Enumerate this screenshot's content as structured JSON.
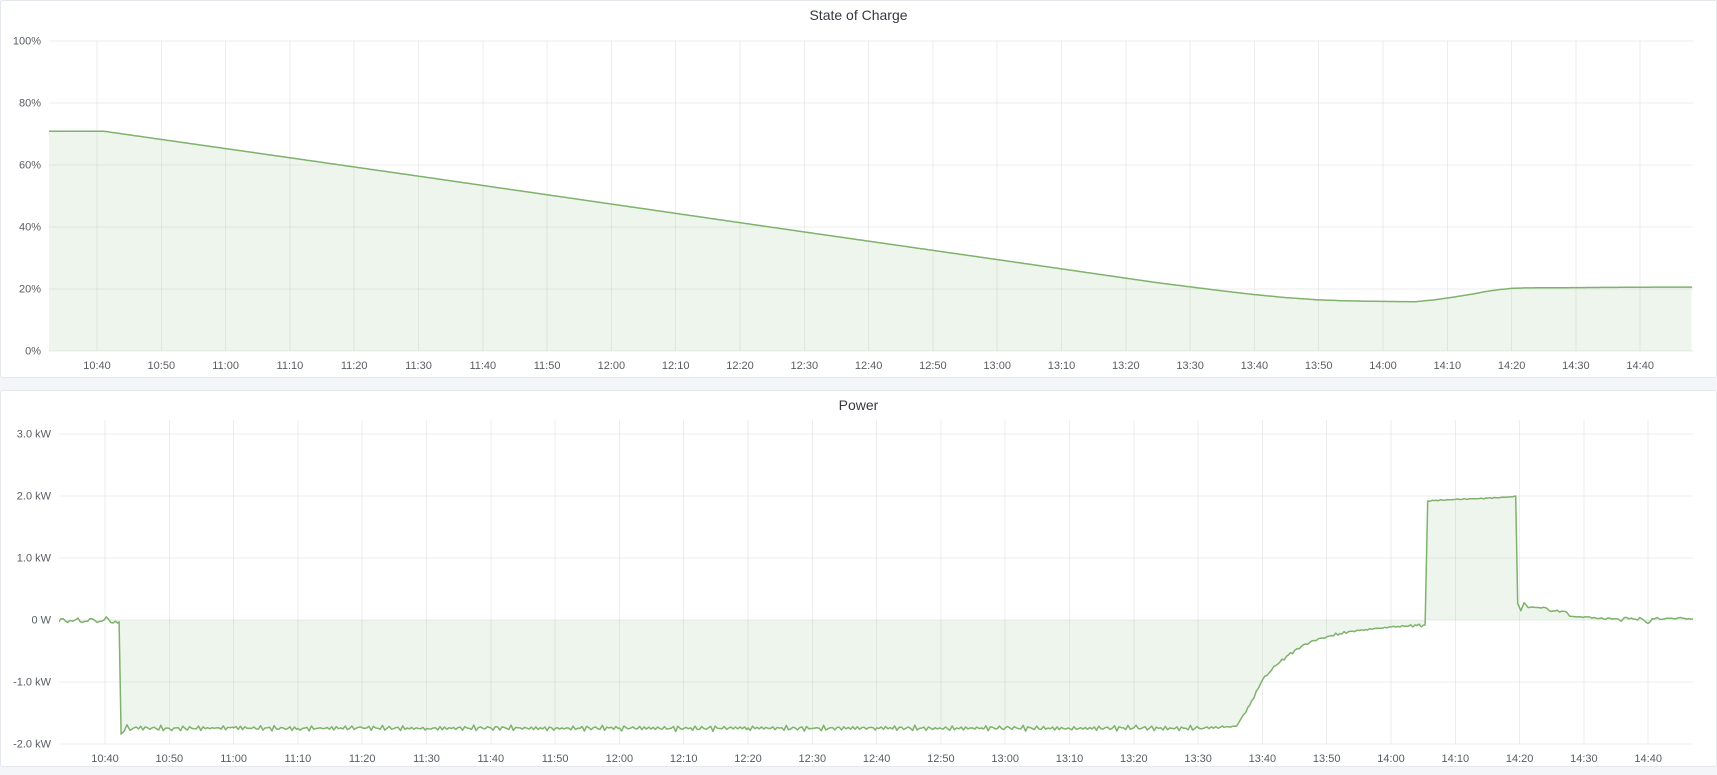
{
  "page": {
    "background_color": "#f4f5f9",
    "panel_background": "#ffffff"
  },
  "chart_data": [
    {
      "type": "area",
      "title": "State of Charge",
      "xlabel": "",
      "ylabel": "",
      "unit": "percent",
      "ylim": [
        0,
        100.3
      ],
      "grid": true,
      "legend": "none",
      "x_axis_minutes_after_10_00": true,
      "xlim": [
        32.5,
        288.5
      ],
      "x_ticks": [
        {
          "t": 40,
          "label": "10:40"
        },
        {
          "t": 50,
          "label": "10:50"
        },
        {
          "t": 60,
          "label": "11:00"
        },
        {
          "t": 70,
          "label": "11:10"
        },
        {
          "t": 80,
          "label": "11:20"
        },
        {
          "t": 90,
          "label": "11:30"
        },
        {
          "t": 100,
          "label": "11:40"
        },
        {
          "t": 110,
          "label": "11:50"
        },
        {
          "t": 120,
          "label": "12:00"
        },
        {
          "t": 130,
          "label": "12:10"
        },
        {
          "t": 140,
          "label": "12:20"
        },
        {
          "t": 150,
          "label": "12:30"
        },
        {
          "t": 160,
          "label": "12:40"
        },
        {
          "t": 170,
          "label": "12:50"
        },
        {
          "t": 180,
          "label": "13:00"
        },
        {
          "t": 190,
          "label": "13:10"
        },
        {
          "t": 200,
          "label": "13:20"
        },
        {
          "t": 210,
          "label": "13:30"
        },
        {
          "t": 220,
          "label": "13:40"
        },
        {
          "t": 230,
          "label": "13:50"
        },
        {
          "t": 240,
          "label": "14:00"
        },
        {
          "t": 250,
          "label": "14:10"
        },
        {
          "t": 260,
          "label": "14:20"
        },
        {
          "t": 270,
          "label": "14:30"
        },
        {
          "t": 280,
          "label": "14:40"
        }
      ],
      "y_ticks": [
        {
          "v": 0,
          "label": "0%"
        },
        {
          "v": 20,
          "label": "20%"
        },
        {
          "v": 40,
          "label": "40%"
        },
        {
          "v": 60,
          "label": "60%"
        },
        {
          "v": 80,
          "label": "80%"
        },
        {
          "v": 100,
          "label": "100%"
        }
      ],
      "baseline": 0,
      "series": [
        {
          "name": "State of Charge",
          "color": "#7eb26d",
          "fill_opacity": 0.13,
          "points": [
            [
              32.5,
              70.9
            ],
            [
              41,
              70.9
            ],
            [
              60,
              65.3
            ],
            [
              90,
              56.4
            ],
            [
              120,
              47.4
            ],
            [
              150,
              38.4
            ],
            [
              180,
              29.5
            ],
            [
              195,
              25.0
            ],
            [
              200,
              23.5
            ],
            [
              205,
              22.0
            ],
            [
              210,
              20.7
            ],
            [
              215,
              19.4
            ],
            [
              220,
              18.2
            ],
            [
              225,
              17.2
            ],
            [
              230,
              16.5
            ],
            [
              234,
              16.2
            ],
            [
              238,
              16.05
            ],
            [
              242,
              15.95
            ],
            [
              245,
              15.9
            ],
            [
              248,
              16.5
            ],
            [
              251,
              17.4
            ],
            [
              254,
              18.4
            ],
            [
              256,
              19.2
            ],
            [
              258,
              19.8
            ],
            [
              260,
              20.2
            ],
            [
              262,
              20.35
            ],
            [
              266,
              20.4
            ],
            [
              270,
              20.45
            ],
            [
              274,
              20.5
            ],
            [
              278,
              20.55
            ],
            [
              282,
              20.6
            ],
            [
              288,
              20.6
            ]
          ],
          "noise_segments": []
        }
      ]
    },
    {
      "type": "area",
      "title": "Power",
      "xlabel": "",
      "ylabel": "",
      "unit": "watt",
      "ylim": [
        -2.0,
        3.23
      ],
      "grid": true,
      "legend": "none",
      "x_axis_minutes_after_10_00": true,
      "xlim": [
        32.8,
        287
      ],
      "x_ticks": [
        {
          "t": 40,
          "label": "10:40"
        },
        {
          "t": 50,
          "label": "10:50"
        },
        {
          "t": 60,
          "label": "11:00"
        },
        {
          "t": 70,
          "label": "11:10"
        },
        {
          "t": 80,
          "label": "11:20"
        },
        {
          "t": 90,
          "label": "11:30"
        },
        {
          "t": 100,
          "label": "11:40"
        },
        {
          "t": 110,
          "label": "11:50"
        },
        {
          "t": 120,
          "label": "12:00"
        },
        {
          "t": 130,
          "label": "12:10"
        },
        {
          "t": 140,
          "label": "12:20"
        },
        {
          "t": 150,
          "label": "12:30"
        },
        {
          "t": 160,
          "label": "12:40"
        },
        {
          "t": 170,
          "label": "12:50"
        },
        {
          "t": 180,
          "label": "13:00"
        },
        {
          "t": 190,
          "label": "13:10"
        },
        {
          "t": 200,
          "label": "13:20"
        },
        {
          "t": 210,
          "label": "13:30"
        },
        {
          "t": 220,
          "label": "13:40"
        },
        {
          "t": 230,
          "label": "13:50"
        },
        {
          "t": 240,
          "label": "14:00"
        },
        {
          "t": 250,
          "label": "14:10"
        },
        {
          "t": 260,
          "label": "14:20"
        },
        {
          "t": 270,
          "label": "14:30"
        },
        {
          "t": 280,
          "label": "14:40"
        }
      ],
      "y_ticks": [
        {
          "v": 3,
          "label": "3.0 kW"
        },
        {
          "v": 2,
          "label": "2.0 kW"
        },
        {
          "v": 1,
          "label": "1.0 kW"
        },
        {
          "v": 0,
          "label": "0 W"
        },
        {
          "v": -1,
          "label": "-1.0 kW"
        },
        {
          "v": -2,
          "label": "-2.0 kW"
        }
      ],
      "baseline": 0,
      "series": [
        {
          "name": "Power",
          "color": "#7eb26d",
          "fill_opacity": 0.13,
          "points": [
            [
              32.8,
              -0.03
            ],
            [
              33.5,
              0.02
            ],
            [
              34.2,
              -0.04
            ],
            [
              35,
              -0.02
            ],
            [
              35.8,
              0.03
            ],
            [
              36.5,
              -0.04
            ],
            [
              37.3,
              -0.02
            ],
            [
              38,
              0.02
            ],
            [
              38.8,
              -0.04
            ],
            [
              39.5,
              -0.02
            ],
            [
              40.2,
              0.05
            ],
            [
              40.9,
              -0.04
            ],
            [
              41.6,
              -0.02
            ],
            [
              42.2,
              -0.03
            ],
            [
              42.5,
              -1.84
            ],
            [
              43,
              -1.79
            ],
            [
              43.4,
              -1.69
            ],
            [
              43.9,
              -1.78
            ],
            [
              44.5,
              -1.74
            ],
            [
              50,
              -1.75
            ],
            [
              60,
              -1.74
            ],
            [
              70,
              -1.75
            ],
            [
              80,
              -1.74
            ],
            [
              90,
              -1.75
            ],
            [
              100,
              -1.74
            ],
            [
              110,
              -1.75
            ],
            [
              120,
              -1.74
            ],
            [
              130,
              -1.75
            ],
            [
              140,
              -1.74
            ],
            [
              150,
              -1.75
            ],
            [
              160,
              -1.74
            ],
            [
              170,
              -1.75
            ],
            [
              180,
              -1.74
            ],
            [
              190,
              -1.75
            ],
            [
              200,
              -1.74
            ],
            [
              206,
              -1.75
            ],
            [
              211,
              -1.74
            ],
            [
              214,
              -1.73
            ],
            [
              216,
              -1.71
            ],
            [
              218,
              -1.38
            ],
            [
              220,
              -0.97
            ],
            [
              222,
              -0.74
            ],
            [
              224,
              -0.57
            ],
            [
              226,
              -0.43
            ],
            [
              228,
              -0.33
            ],
            [
              230,
              -0.27
            ],
            [
              232,
              -0.22
            ],
            [
              234,
              -0.18
            ],
            [
              236,
              -0.155
            ],
            [
              238,
              -0.135
            ],
            [
              240,
              -0.115
            ],
            [
              242,
              -0.1
            ],
            [
              244,
              -0.09
            ],
            [
              245.3,
              -0.08
            ],
            [
              245.7,
              1.92
            ],
            [
              247,
              1.93
            ],
            [
              250,
              1.945
            ],
            [
              253,
              1.955
            ],
            [
              255,
              1.965
            ],
            [
              257,
              1.975
            ],
            [
              258.5,
              1.985
            ],
            [
              259.4,
              2.0
            ],
            [
              259.7,
              0.27
            ],
            [
              260.2,
              0.15
            ],
            [
              260.7,
              0.28
            ],
            [
              261.3,
              0.2
            ],
            [
              262,
              0.21
            ],
            [
              263,
              0.2
            ],
            [
              264,
              0.2
            ],
            [
              264.6,
              0.15
            ],
            [
              265.5,
              0.145
            ],
            [
              266.5,
              0.14
            ],
            [
              267.3,
              0.13
            ],
            [
              267.8,
              0.06
            ],
            [
              268.5,
              0.055
            ],
            [
              269.5,
              0.05
            ],
            [
              270.5,
              0.05
            ],
            [
              271.2,
              0.03
            ],
            [
              272,
              0.025
            ],
            [
              273,
              0.02
            ],
            [
              274,
              0.03
            ],
            [
              275,
              0.02
            ],
            [
              275.8,
              -0.02
            ],
            [
              276.3,
              0.04
            ],
            [
              277,
              0.02
            ],
            [
              278,
              0.015
            ],
            [
              279,
              0.02
            ],
            [
              280,
              -0.055
            ],
            [
              280.6,
              0.02
            ],
            [
              281.4,
              0.04
            ],
            [
              282.2,
              0.01
            ],
            [
              283,
              0.03
            ],
            [
              284,
              0.02
            ],
            [
              285,
              0.04
            ],
            [
              286,
              0.015
            ],
            [
              287,
              0.02
            ]
          ],
          "noise_segments": [
            {
              "from": 32.8,
              "to": 42.2,
              "amp": 0.022
            },
            {
              "from": 44.5,
              "to": 215.5,
              "amp": 0.034
            },
            {
              "from": 216.5,
              "to": 245,
              "amp": 0.018
            },
            {
              "from": 246,
              "to": 259.3,
              "amp": 0.006
            },
            {
              "from": 260.5,
              "to": 287,
              "amp": 0.016
            }
          ]
        }
      ]
    }
  ]
}
